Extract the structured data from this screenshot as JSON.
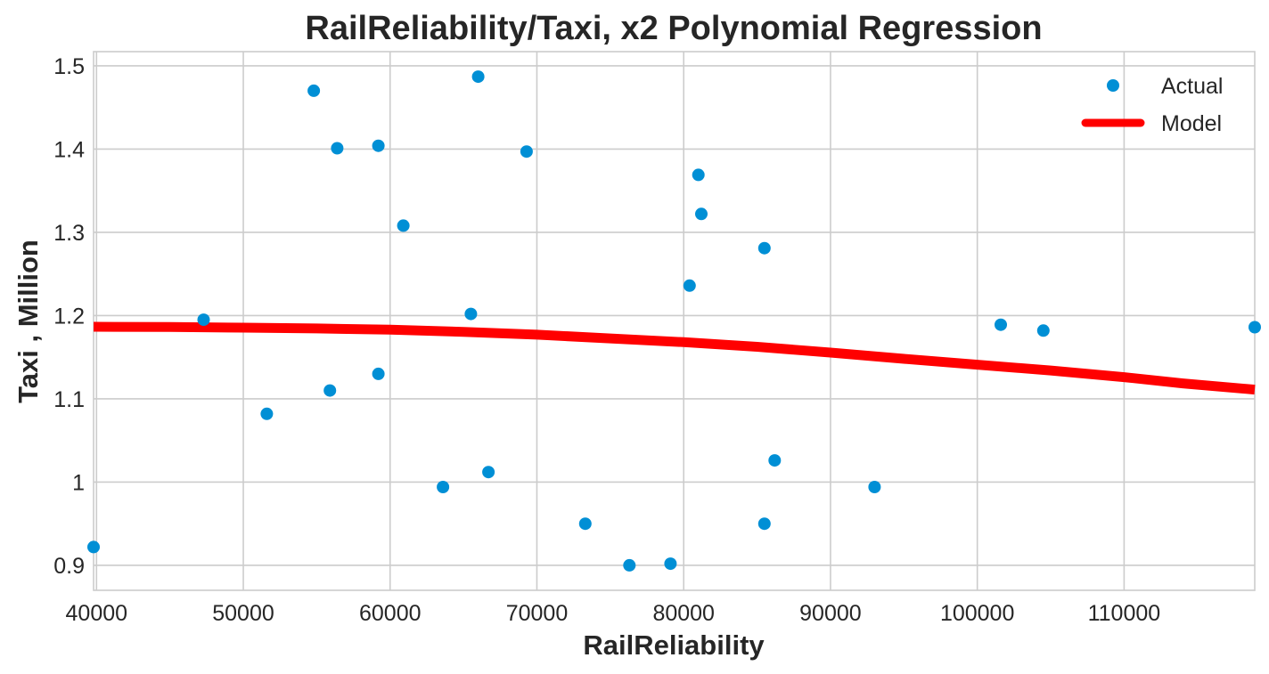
{
  "chart_data": {
    "type": "scatter",
    "title": "RailReliability/Taxi, x2 Polynomial Regression",
    "xlabel": "RailReliability",
    "ylabel": "Taxi , Million",
    "xlim": [
      39800,
      118900
    ],
    "ylim": [
      0.87,
      1.517
    ],
    "x_ticks": [
      40000,
      50000,
      60000,
      70000,
      80000,
      90000,
      100000,
      110000
    ],
    "x_tick_labels": [
      "40000",
      "50000",
      "60000",
      "70000",
      "80000",
      "90000",
      "100000",
      "110000"
    ],
    "y_ticks": [
      0.9,
      1.0,
      1.1,
      1.2,
      1.3,
      1.4,
      1.5
    ],
    "y_tick_labels": [
      "0.9",
      "1",
      "1.1",
      "1.2",
      "1.3",
      "1.4",
      "1.5"
    ],
    "grid": true,
    "legend": {
      "position": "top-right",
      "entries": [
        {
          "label": "Actual",
          "marker": "dot",
          "color": "#008fd5"
        },
        {
          "label": "Model",
          "marker": "line",
          "color": "#ff0000"
        }
      ]
    },
    "series": [
      {
        "name": "Actual",
        "kind": "scatter",
        "color": "#008fd5",
        "points": [
          [
            39800,
            0.922
          ],
          [
            47300,
            1.195
          ],
          [
            51600,
            1.082
          ],
          [
            54800,
            1.47
          ],
          [
            55900,
            1.11
          ],
          [
            56400,
            1.401
          ],
          [
            59200,
            1.404
          ],
          [
            59200,
            1.13
          ],
          [
            60900,
            1.308
          ],
          [
            63600,
            0.994
          ],
          [
            65500,
            1.202
          ],
          [
            66000,
            1.487
          ],
          [
            66700,
            1.012
          ],
          [
            69300,
            1.397
          ],
          [
            73300,
            0.95
          ],
          [
            76300,
            0.9
          ],
          [
            79100,
            0.902
          ],
          [
            80400,
            1.236
          ],
          [
            81000,
            1.369
          ],
          [
            81200,
            1.322
          ],
          [
            85500,
            1.281
          ],
          [
            85500,
            0.95
          ],
          [
            86200,
            1.026
          ],
          [
            93000,
            0.994
          ],
          [
            101600,
            1.189
          ],
          [
            104500,
            1.182
          ],
          [
            118900,
            1.186
          ]
        ]
      },
      {
        "name": "Model",
        "kind": "line",
        "color": "#ff0000",
        "points": [
          [
            39800,
            1.1865
          ],
          [
            45000,
            1.1862
          ],
          [
            50000,
            1.1855
          ],
          [
            55000,
            1.1845
          ],
          [
            60000,
            1.183
          ],
          [
            65000,
            1.1805
          ],
          [
            70000,
            1.177
          ],
          [
            75000,
            1.1725
          ],
          [
            80000,
            1.168
          ],
          [
            85000,
            1.1625
          ],
          [
            90000,
            1.1555
          ],
          [
            95000,
            1.148
          ],
          [
            100000,
            1.141
          ],
          [
            105000,
            1.134
          ],
          [
            110000,
            1.126
          ],
          [
            114000,
            1.1185
          ],
          [
            118900,
            1.111
          ]
        ]
      }
    ]
  }
}
